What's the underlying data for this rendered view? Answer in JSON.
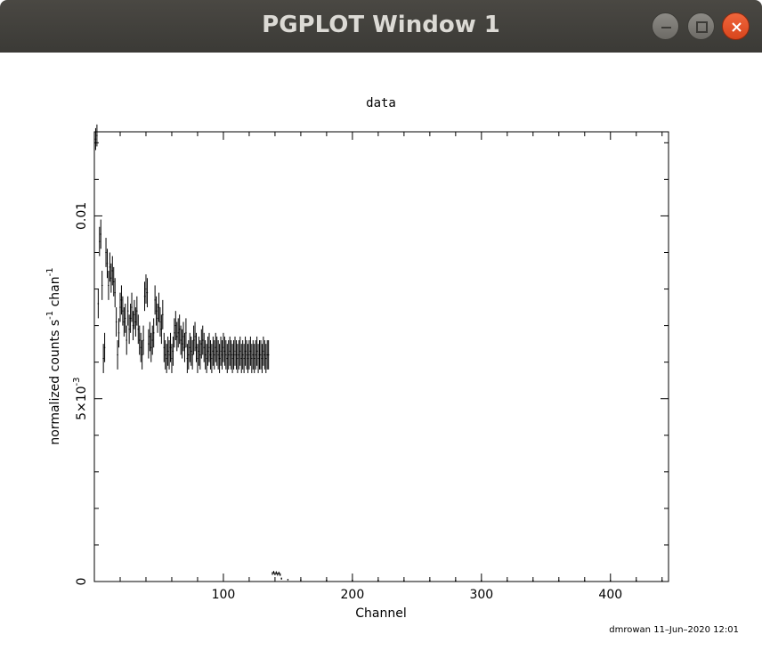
{
  "window": {
    "title": "PGPLOT Window 1",
    "buttons": [
      "minimize",
      "maximize",
      "close"
    ],
    "close_color": "#e95420"
  },
  "chart_data": {
    "type": "scatter",
    "title": "data",
    "xlabel": "Channel",
    "ylabel_main": "normalized counts s",
    "ylabel_sup1": "-1",
    "ylabel_mid": " chan",
    "ylabel_sup2": "-1",
    "xlim": [
      0,
      445
    ],
    "ylim": [
      0,
      0.0123
    ],
    "x_ticks": [
      100,
      200,
      300,
      400
    ],
    "x_tick_labels": [
      "100",
      "200",
      "300",
      "400"
    ],
    "y_ticks": [
      0,
      0.005,
      0.01
    ],
    "y_tick_labels": [
      "0",
      "5×10",
      "0.01"
    ],
    "y_tick_label_sup": [
      "",
      "-3",
      ""
    ],
    "footer": "dmrowan 11–Jun–2020 12:01",
    "series": [
      {
        "values": [
          [
            1,
            0.0121,
            0.0003
          ],
          [
            2,
            0.0122,
            0.0003
          ],
          [
            3,
            0.0076,
            0.0004
          ],
          [
            4,
            0.0093,
            0.0004
          ],
          [
            5,
            0.0095,
            0.0004
          ],
          [
            6,
            0.0081,
            0.0004
          ],
          [
            7,
            0.0061,
            0.0004
          ],
          [
            8,
            0.0064,
            0.0004
          ],
          [
            9,
            0.009,
            0.0004
          ],
          [
            10,
            0.0087,
            0.0004
          ],
          [
            11,
            0.0081,
            0.0004
          ],
          [
            12,
            0.0086,
            0.0004
          ],
          [
            13,
            0.0083,
            0.0004
          ],
          [
            14,
            0.0085,
            0.0004
          ],
          [
            15,
            0.0082,
            0.0004
          ],
          [
            16,
            0.0079,
            0.0004
          ],
          [
            17,
            0.0071,
            0.0004
          ],
          [
            18,
            0.0062,
            0.0004
          ],
          [
            19,
            0.0068,
            0.0004
          ],
          [
            20,
            0.0075,
            0.0004
          ],
          [
            21,
            0.0077,
            0.0004
          ],
          [
            22,
            0.0074,
            0.0004
          ],
          [
            23,
            0.0071,
            0.0004
          ],
          [
            24,
            0.0072,
            0.0004
          ],
          [
            25,
            0.0066,
            0.0004
          ],
          [
            26,
            0.0074,
            0.0004
          ],
          [
            27,
            0.0069,
            0.0004
          ],
          [
            28,
            0.0072,
            0.0004
          ],
          [
            29,
            0.0075,
            0.0004
          ],
          [
            30,
            0.007,
            0.0004
          ],
          [
            31,
            0.0073,
            0.0004
          ],
          [
            32,
            0.0071,
            0.0004
          ],
          [
            33,
            0.0074,
            0.0004
          ],
          [
            34,
            0.0069,
            0.0004
          ],
          [
            35,
            0.0066,
            0.0004
          ],
          [
            36,
            0.0064,
            0.0004
          ],
          [
            37,
            0.0062,
            0.0004
          ],
          [
            38,
            0.0066,
            0.0004
          ],
          [
            39,
            0.0078,
            0.0004
          ],
          [
            40,
            0.008,
            0.0004
          ],
          [
            41,
            0.0079,
            0.0004
          ],
          [
            42,
            0.0065,
            0.0004
          ],
          [
            43,
            0.0067,
            0.0004
          ],
          [
            44,
            0.0064,
            0.0004
          ],
          [
            45,
            0.0066,
            0.0004
          ],
          [
            46,
            0.0068,
            0.0004
          ],
          [
            47,
            0.0077,
            0.0004
          ],
          [
            48,
            0.0074,
            0.0004
          ],
          [
            49,
            0.0072,
            0.0004
          ],
          [
            50,
            0.0075,
            0.0004
          ],
          [
            51,
            0.0071,
            0.0004
          ],
          [
            52,
            0.0069,
            0.0004
          ],
          [
            53,
            0.0073,
            0.0004
          ],
          [
            54,
            0.0064,
            0.0004
          ],
          [
            55,
            0.0062,
            0.0004
          ],
          [
            56,
            0.0061,
            0.0004
          ],
          [
            57,
            0.0063,
            0.0004
          ],
          [
            58,
            0.0062,
            0.0004
          ],
          [
            59,
            0.0064,
            0.0004
          ],
          [
            60,
            0.0061,
            0.0004
          ],
          [
            61,
            0.0063,
            0.0004
          ],
          [
            62,
            0.0068,
            0.0004
          ],
          [
            63,
            0.007,
            0.0004
          ],
          [
            64,
            0.0067,
            0.0004
          ],
          [
            65,
            0.0068,
            0.0004
          ],
          [
            66,
            0.0069,
            0.0004
          ],
          [
            67,
            0.0066,
            0.0004
          ],
          [
            68,
            0.0065,
            0.0004
          ],
          [
            69,
            0.0067,
            0.0004
          ],
          [
            70,
            0.0064,
            0.0004
          ],
          [
            71,
            0.0068,
            0.0004
          ],
          [
            72,
            0.0061,
            0.0004
          ],
          [
            73,
            0.0062,
            0.0004
          ],
          [
            74,
            0.0064,
            0.0004
          ],
          [
            75,
            0.0063,
            0.0004
          ],
          [
            76,
            0.0062,
            0.0004
          ],
          [
            77,
            0.0066,
            0.0004
          ],
          [
            78,
            0.0067,
            0.0004
          ],
          [
            79,
            0.0064,
            0.0004
          ],
          [
            80,
            0.0061,
            0.0004
          ],
          [
            81,
            0.0063,
            0.0004
          ],
          [
            82,
            0.0062,
            0.0004
          ],
          [
            83,
            0.0065,
            0.0004
          ],
          [
            84,
            0.0066,
            0.0004
          ],
          [
            85,
            0.0064,
            0.0004
          ],
          [
            86,
            0.0062,
            0.0004
          ],
          [
            87,
            0.0061,
            0.0004
          ],
          [
            88,
            0.0063,
            0.0004
          ],
          [
            89,
            0.0064,
            0.0004
          ],
          [
            90,
            0.0062,
            0.0004
          ],
          [
            91,
            0.0061,
            0.0004
          ],
          [
            92,
            0.0063,
            0.0004
          ],
          [
            93,
            0.0062,
            0.0004
          ],
          [
            94,
            0.0064,
            0.0004
          ],
          [
            95,
            0.0063,
            0.0004
          ],
          [
            96,
            0.0062,
            0.0004
          ],
          [
            97,
            0.0061,
            0.0004
          ],
          [
            98,
            0.0063,
            0.0004
          ],
          [
            99,
            0.0062,
            0.0004
          ],
          [
            100,
            0.0064,
            0.0004
          ],
          [
            101,
            0.0063,
            0.0004
          ],
          [
            102,
            0.0062,
            0.0004
          ],
          [
            103,
            0.0061,
            0.0004
          ],
          [
            104,
            0.0062,
            0.0004
          ],
          [
            105,
            0.0063,
            0.0004
          ],
          [
            106,
            0.0062,
            0.0004
          ],
          [
            107,
            0.0061,
            0.0004
          ],
          [
            108,
            0.0062,
            0.0004
          ],
          [
            109,
            0.0063,
            0.0004
          ],
          [
            110,
            0.0062,
            0.0004
          ],
          [
            111,
            0.0061,
            0.0004
          ],
          [
            112,
            0.0062,
            0.0004
          ],
          [
            113,
            0.0063,
            0.0004
          ],
          [
            114,
            0.0061,
            0.0004
          ],
          [
            115,
            0.0062,
            0.0004
          ],
          [
            116,
            0.0061,
            0.0004
          ],
          [
            117,
            0.0063,
            0.0004
          ],
          [
            118,
            0.0062,
            0.0004
          ],
          [
            119,
            0.0061,
            0.0004
          ],
          [
            120,
            0.0062,
            0.0004
          ],
          [
            121,
            0.0063,
            0.0004
          ],
          [
            122,
            0.0061,
            0.0004
          ],
          [
            123,
            0.0062,
            0.0004
          ],
          [
            124,
            0.0061,
            0.0004
          ],
          [
            125,
            0.0062,
            0.0004
          ],
          [
            126,
            0.0063,
            0.0004
          ],
          [
            127,
            0.0061,
            0.0004
          ],
          [
            128,
            0.0062,
            0.0004
          ],
          [
            129,
            0.0062,
            0.0004
          ],
          [
            130,
            0.0061,
            0.0004
          ],
          [
            131,
            0.0063,
            0.0004
          ],
          [
            132,
            0.0062,
            0.0004
          ],
          [
            133,
            0.0061,
            0.0004
          ],
          [
            134,
            0.0062,
            0.0004
          ],
          [
            135,
            0.0062,
            0.0004
          ],
          [
            138,
            0.00022,
            4e-05
          ],
          [
            139,
            0.00025,
            4e-05
          ],
          [
            140,
            0.00021,
            4e-05
          ],
          [
            141,
            0.00024,
            4e-05
          ],
          [
            142,
            0.0002,
            4e-05
          ],
          [
            143,
            0.00023,
            4e-05
          ],
          [
            144,
            0.00019,
            4e-05
          ],
          [
            145,
            8e-05,
            3e-05
          ],
          [
            150,
            5e-05,
            2e-05
          ],
          [
            160,
            4e-05,
            2e-05
          ],
          [
            180,
            3e-05,
            2e-05
          ],
          [
            200,
            3e-05,
            2e-05
          ],
          [
            220,
            3e-05,
            2e-05
          ],
          [
            240,
            2e-05,
            2e-05
          ],
          [
            260,
            2e-05,
            2e-05
          ],
          [
            280,
            2e-05,
            2e-05
          ],
          [
            300,
            2e-05,
            2e-05
          ],
          [
            320,
            2e-05,
            2e-05
          ],
          [
            340,
            2e-05,
            2e-05
          ],
          [
            360,
            2e-05,
            2e-05
          ],
          [
            380,
            2e-05,
            2e-05
          ],
          [
            400,
            2e-05,
            2e-05
          ],
          [
            420,
            2e-05,
            2e-05
          ],
          [
            440,
            2e-05,
            2e-05
          ]
        ]
      }
    ]
  }
}
